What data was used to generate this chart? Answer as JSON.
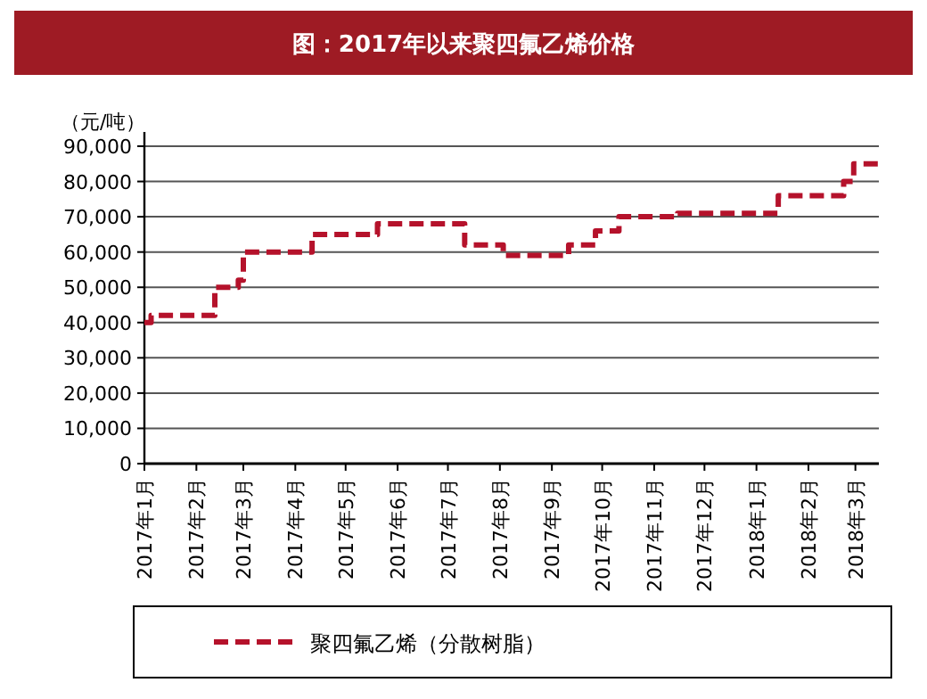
{
  "chart_data": {
    "type": "step",
    "title": "图：2017年以来聚四氟乙烯价格",
    "ylabel": "（元/吨）",
    "x": [
      "2017-01-01",
      "2017-01-05",
      "2017-02-12",
      "2017-02-26",
      "2017-03-01",
      "2017-04-11",
      "2017-05-20",
      "2017-07-11",
      "2017-08-03",
      "2017-09-11",
      "2017-09-27",
      "2017-10-11",
      "2017-11-15",
      "2018-01-14",
      "2018-02-22",
      "2018-02-28",
      "2018-03-15"
    ],
    "series": [
      {
        "name": "聚四氟乙烯（分散树脂）",
        "color": "#b5122b",
        "values": [
          40000,
          42000,
          50000,
          52000,
          60000,
          65000,
          68000,
          62000,
          59000,
          62000,
          66000,
          70000,
          71000,
          76000,
          80000,
          85000,
          85000
        ]
      }
    ],
    "xlim": [
      "2017-01-01",
      "2018-03-15"
    ],
    "xticks": [
      {
        "value": "2017-01-01",
        "label": "2017年1月"
      },
      {
        "value": "2017-02-01",
        "label": "2017年2月"
      },
      {
        "value": "2017-03-01",
        "label": "2017年3月"
      },
      {
        "value": "2017-04-01",
        "label": "2017年4月"
      },
      {
        "value": "2017-05-01",
        "label": "2017年5月"
      },
      {
        "value": "2017-06-01",
        "label": "2017年6月"
      },
      {
        "value": "2017-07-01",
        "label": "2017年7月"
      },
      {
        "value": "2017-08-01",
        "label": "2017年8月"
      },
      {
        "value": "2017-09-01",
        "label": "2017年9月"
      },
      {
        "value": "2017-10-01",
        "label": "2017年10月"
      },
      {
        "value": "2017-11-01",
        "label": "2017年11月"
      },
      {
        "value": "2017-12-01",
        "label": "2017年12月"
      },
      {
        "value": "2018-01-01",
        "label": "2018年1月"
      },
      {
        "value": "2018-02-01",
        "label": "2018年2月"
      },
      {
        "value": "2018-03-01",
        "label": "2018年3月"
      }
    ],
    "ylim": [
      0,
      90000
    ],
    "yticks": [
      {
        "value": 0,
        "label": "0"
      },
      {
        "value": 10000,
        "label": "10,000"
      },
      {
        "value": 20000,
        "label": "20,000"
      },
      {
        "value": 30000,
        "label": "30,000"
      },
      {
        "value": 40000,
        "label": "40,000"
      },
      {
        "value": 50000,
        "label": "50,000"
      },
      {
        "value": 60000,
        "label": "60,000"
      },
      {
        "value": 70000,
        "label": "70,000"
      },
      {
        "value": 80000,
        "label": "80,000"
      },
      {
        "value": 90000,
        "label": "90,000"
      }
    ],
    "grid": "y",
    "legend": "bottom",
    "line_style": "dashed",
    "marker": "none"
  }
}
